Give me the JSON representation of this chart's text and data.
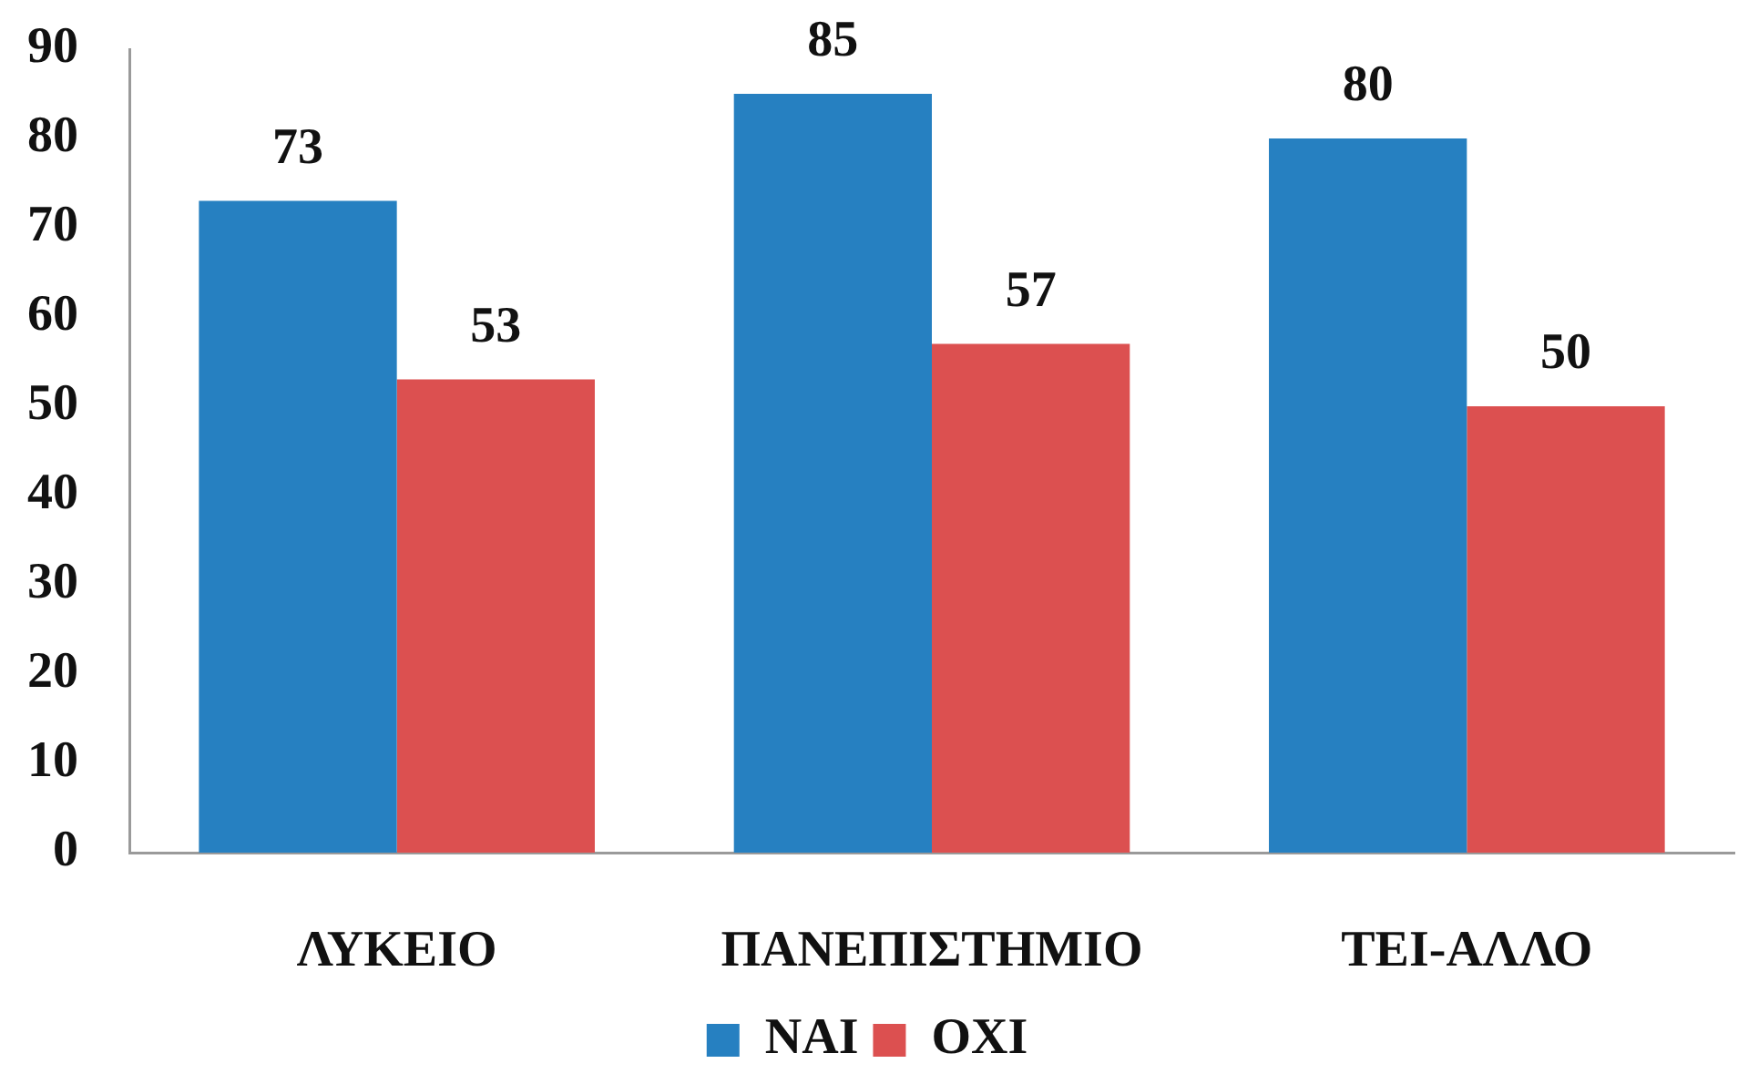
{
  "chart_data": {
    "type": "bar",
    "categories": [
      "ΛΥΚΕΙΟ",
      "ΠΑΝΕΠΙΣΤΗΜΙΟ",
      "ΤΕΙ-ΑΛΛΟ"
    ],
    "series": [
      {
        "name": "ΝΑΙ",
        "color": "#2680c1",
        "values": [
          73,
          85,
          80
        ]
      },
      {
        "name": "ΟΧΙ",
        "color": "#dc5050",
        "values": [
          53,
          57,
          50
        ]
      }
    ],
    "ylim": [
      0,
      90
    ],
    "yticks": [
      0,
      10,
      20,
      30,
      40,
      50,
      60,
      70,
      80,
      90
    ],
    "legend": "bottom",
    "data_labels": true
  }
}
